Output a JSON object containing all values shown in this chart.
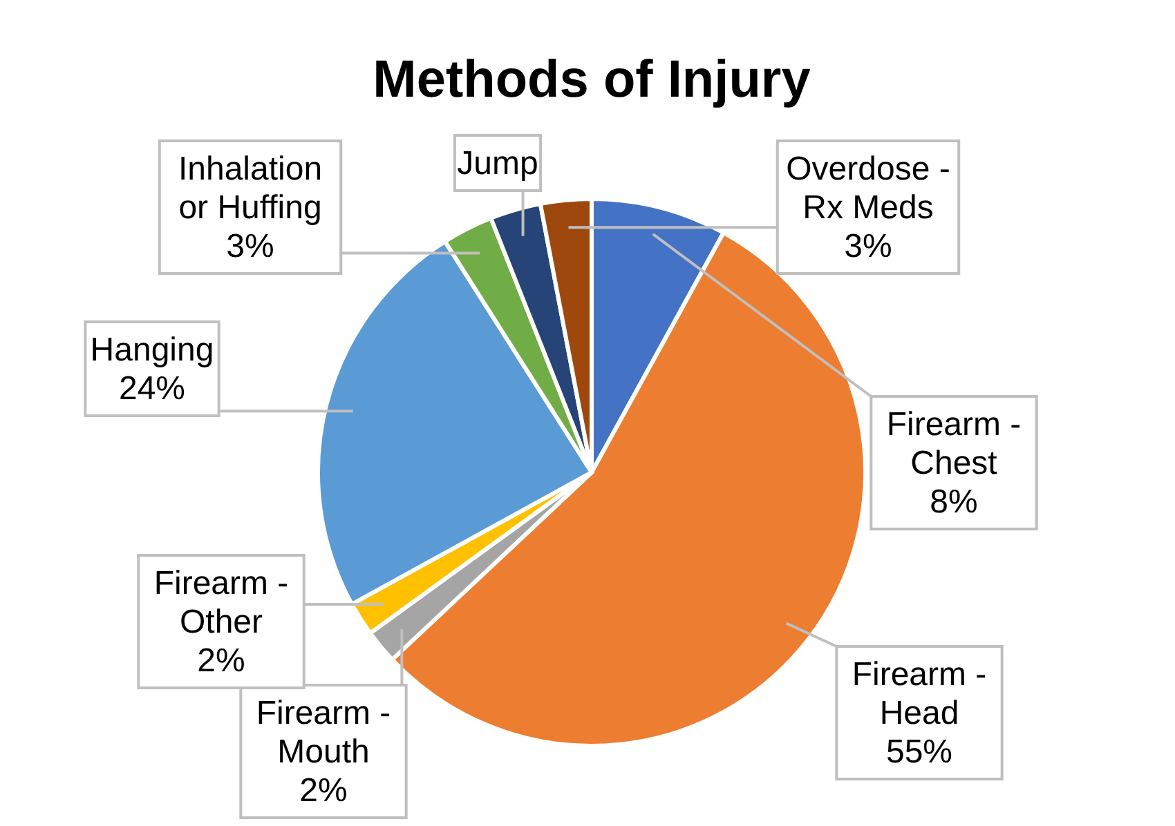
{
  "chart_data": {
    "type": "pie",
    "title": "Methods of Injury",
    "categories": [
      "Firearm - Chest",
      "Firearm - Head",
      "Firearm - Mouth",
      "Firearm - Other",
      "Hanging",
      "Inhalation or Huffing",
      "Jump",
      "Overdose - Rx Meds"
    ],
    "values": [
      8,
      55,
      2,
      2,
      24,
      3,
      3,
      3
    ],
    "value_labels": [
      "8%",
      "55%",
      "2%",
      "2%",
      "24%",
      "3%",
      null,
      "3%"
    ],
    "colors": [
      "#4472c4",
      "#ed7d31",
      "#a5a5a5",
      "#ffc000",
      "#5b9bd5",
      "#70ad47",
      "#264478",
      "#9e480e"
    ]
  }
}
